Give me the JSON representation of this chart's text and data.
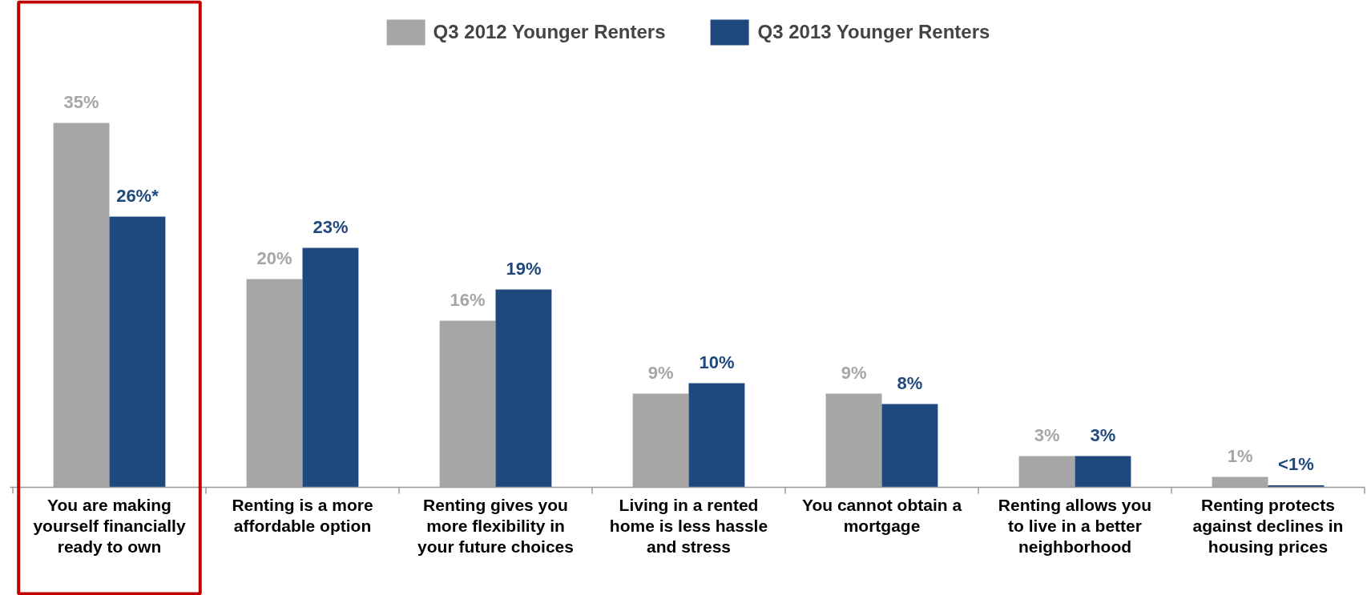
{
  "chart_data": {
    "type": "bar",
    "categories": [
      "You are making yourself financially ready to own",
      "Renting is a more affordable option",
      "Renting gives you more flexibility in your future choices",
      "Living in a rented home is less hassle and stress",
      "You cannot obtain a mortgage",
      "Renting allows you to live in a better neighborhood",
      "Renting protects against declines in housing prices"
    ],
    "series": [
      {
        "name": "Q3 2012 Younger Renters",
        "color": "#a6a6a6",
        "values": [
          35,
          20,
          16,
          9,
          9,
          3,
          1
        ],
        "value_labels": [
          "35%",
          "20%",
          "16%",
          "9%",
          "9%",
          "3%",
          "1%"
        ]
      },
      {
        "name": "Q3 2013 Younger Renters",
        "color": "#1f497d",
        "values": [
          26,
          23,
          19,
          10,
          8,
          3,
          0.2
        ],
        "value_labels": [
          "26%*",
          "23%",
          "19%",
          "10%",
          "8%",
          "3%",
          "<1%"
        ]
      }
    ],
    "legend": "top",
    "grid": false
  }
}
